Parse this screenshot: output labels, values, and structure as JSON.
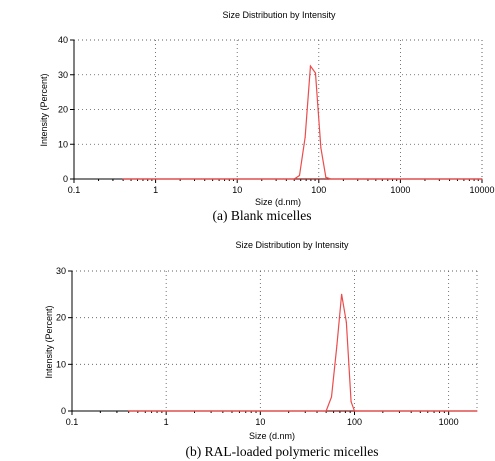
{
  "chart_data": [
    {
      "type": "line",
      "title": "Size Distribution by Intensity",
      "xlabel": "Size (d.nm)",
      "ylabel": "Intensity (Percent)",
      "caption": "(a) Blank micelles",
      "x_scale": "log",
      "xlim": [
        0.1,
        10000
      ],
      "ylim": [
        0,
        40
      ],
      "xticks": [
        "0.1",
        "1",
        "10",
        "100",
        "1000",
        "10000"
      ],
      "yticks": [
        "0",
        "10",
        "20",
        "30",
        "40"
      ],
      "grid": true,
      "series": [
        {
          "color": "#ec4c4c",
          "x": [
            0.4,
            50,
            58,
            68,
            79,
            91,
            106,
            122,
            140,
            10000
          ],
          "y": [
            0,
            0,
            1,
            12,
            32.5,
            30.5,
            9,
            0.5,
            0,
            0
          ]
        }
      ]
    },
    {
      "type": "line",
      "title": "Size Distribution by Intensity",
      "xlabel": "Size (d.nm)",
      "ylabel": "Intensity (Percent)",
      "caption": "(b) RAL-loaded polymeric micelles",
      "x_scale": "log",
      "xlim": [
        0.1,
        2000
      ],
      "ylim": [
        0,
        30
      ],
      "xticks": [
        "0.1",
        "1",
        "10",
        "100",
        "1000"
      ],
      "yticks": [
        "0",
        "10",
        "20",
        "30"
      ],
      "grid": true,
      "series": [
        {
          "color": "#ec4c4c",
          "x": [
            0.4,
            50,
            57,
            65,
            73,
            82,
            92,
            100,
            2000
          ],
          "y": [
            0,
            0,
            3,
            14,
            25,
            19,
            2,
            0,
            0
          ]
        }
      ]
    }
  ]
}
